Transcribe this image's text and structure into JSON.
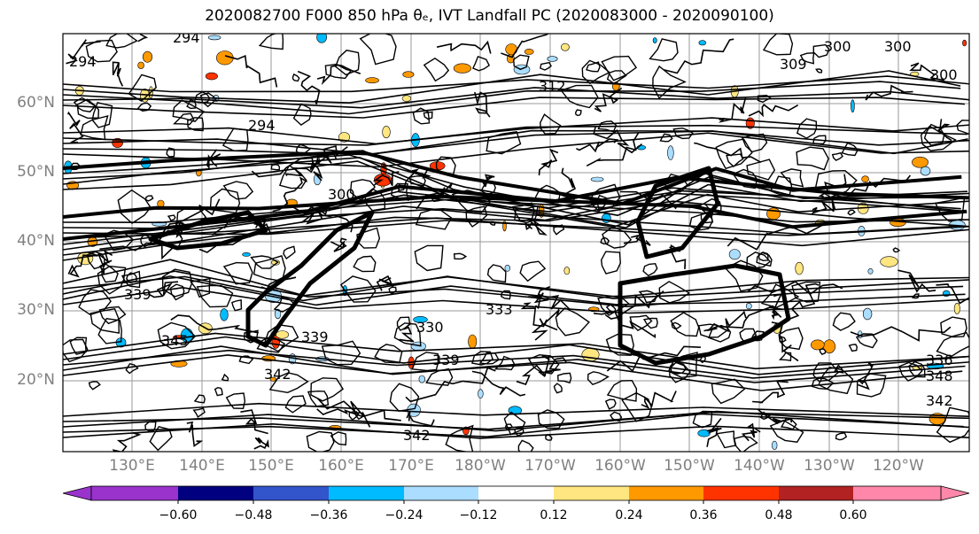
{
  "title": "2020082700 F000 850 hPa θₑ, IVT Landfall PC (2020083000 - 2020090100)",
  "lat_labels": [
    "60°N",
    "50°N",
    "40°N",
    "30°N",
    "20°N"
  ],
  "lon_labels": [
    "130°E",
    "140°E",
    "150°E",
    "160°E",
    "170°E",
    "180°W",
    "170°W",
    "160°W",
    "150°W",
    "140°W",
    "130°W",
    "120°W"
  ],
  "contour_labels": [
    "294",
    "294",
    "294",
    "300",
    "300",
    "300",
    "309",
    "312",
    "300",
    "339",
    "339",
    "342",
    "342",
    "345",
    "333",
    "339",
    "330",
    "336",
    "342",
    "348"
  ],
  "colorbar": {
    "ticks": [
      "−0.60",
      "−0.48",
      "−0.36",
      "−0.24",
      "−0.12",
      "0.12",
      "0.24",
      "0.36",
      "0.48",
      "0.60"
    ],
    "colors": [
      "#9933cc",
      "#000080",
      "#3355cc",
      "#00bbff",
      "#aaddff",
      "#ffffff",
      "#ffe680",
      "#ff9900",
      "#ff3300",
      "#b22222",
      "#ff88aa"
    ]
  }
}
